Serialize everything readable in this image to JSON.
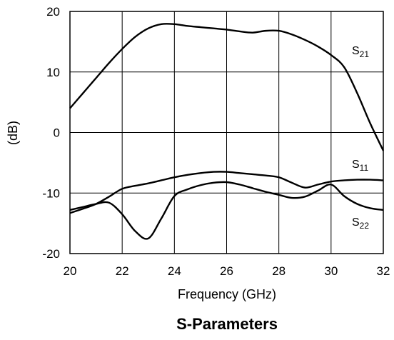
{
  "chart_data": {
    "type": "line",
    "title": "S-Parameters",
    "xlabel": "Frequency (GHz)",
    "ylabel": "(dB)",
    "xlim": [
      20,
      32
    ],
    "ylim": [
      -20,
      20
    ],
    "xticks": [
      20,
      22,
      24,
      26,
      28,
      30,
      32
    ],
    "yticks": [
      -20,
      -10,
      0,
      10,
      20
    ],
    "grid": true,
    "legend": "inline labels on right",
    "series": [
      {
        "name": "S21",
        "label_main": "S",
        "label_sub": "21",
        "x": [
          20,
          20.5,
          21,
          21.5,
          22,
          22.5,
          23,
          23.5,
          24,
          24.5,
          25,
          25.5,
          26,
          26.5,
          27,
          27.5,
          28,
          28.5,
          29,
          29.5,
          30,
          30.5,
          31,
          31.5,
          32
        ],
        "values": [
          4,
          6.5,
          9,
          11.5,
          13.8,
          15.8,
          17.2,
          17.9,
          17.9,
          17.6,
          17.4,
          17.2,
          17,
          16.7,
          16.5,
          16.8,
          16.8,
          16.2,
          15.3,
          14.2,
          12.8,
          10.8,
          6.5,
          1.5,
          -3
        ]
      },
      {
        "name": "S11",
        "label_main": "S",
        "label_sub": "11",
        "x": [
          20,
          20.5,
          21,
          21.5,
          22,
          22.5,
          23,
          23.5,
          24,
          24.5,
          25,
          25.5,
          26,
          26.5,
          27,
          27.5,
          28,
          28.5,
          29,
          29.5,
          30,
          30.5,
          31,
          31.5,
          32
        ],
        "values": [
          -13.3,
          -12.6,
          -11.8,
          -10.6,
          -9.3,
          -8.8,
          -8.4,
          -7.9,
          -7.4,
          -7,
          -6.7,
          -6.5,
          -6.5,
          -6.7,
          -6.9,
          -7.1,
          -7.4,
          -8.3,
          -9.1,
          -8.6,
          -8.1,
          -7.9,
          -7.8,
          -7.8,
          -7.9
        ]
      },
      {
        "name": "S22",
        "label_main": "S",
        "label_sub": "22",
        "x": [
          20,
          20.5,
          21,
          21.5,
          22,
          22.5,
          23,
          23.5,
          24,
          24.5,
          25,
          25.5,
          26,
          26.5,
          27,
          27.5,
          28,
          28.5,
          29,
          29.5,
          30,
          30.5,
          31,
          31.5,
          32
        ],
        "values": [
          -12.8,
          -12.3,
          -11.8,
          -11.6,
          -13.5,
          -16.3,
          -17.5,
          -14.2,
          -10.5,
          -9.4,
          -8.7,
          -8.3,
          -8.2,
          -8.6,
          -9.2,
          -9.8,
          -10.3,
          -10.8,
          -10.6,
          -9.6,
          -8.6,
          -10.5,
          -11.8,
          -12.5,
          -12.8
        ]
      }
    ]
  }
}
